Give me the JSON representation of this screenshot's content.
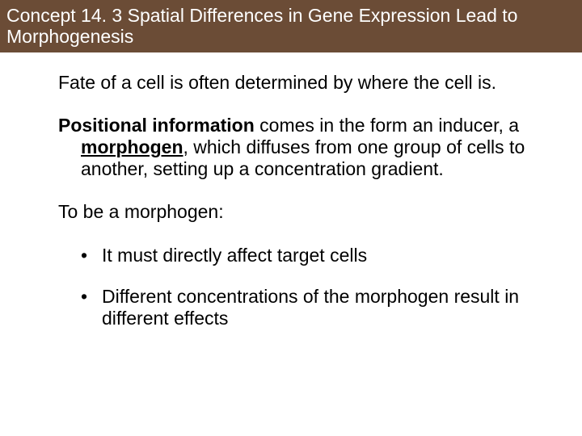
{
  "header": {
    "title": "Concept 14. 3 Spatial Differences in Gene Expression Lead to Morphogenesis"
  },
  "body": {
    "p1": "Fate of a cell is often determined by where the cell is.",
    "p2_a": "Positional information",
    "p2_b": " comes in the form an inducer, a ",
    "p2_c": "morphogen",
    "p2_d": ", which diffuses from one group of cells to another, setting up a concentration gradient.",
    "p3": "To be a morphogen:",
    "li1": "It must directly affect target cells",
    "li2": "Different concentrations of the morphogen result in different effects"
  },
  "style": {
    "header_bg": "#6b4c36",
    "header_color": "#ffffff",
    "body_color": "#000000",
    "font_size_header": 23,
    "font_size_body": 23,
    "slide_bg": "#ffffff",
    "slide_width": 720,
    "slide_height": 540,
    "bullet_glyph": "•"
  }
}
